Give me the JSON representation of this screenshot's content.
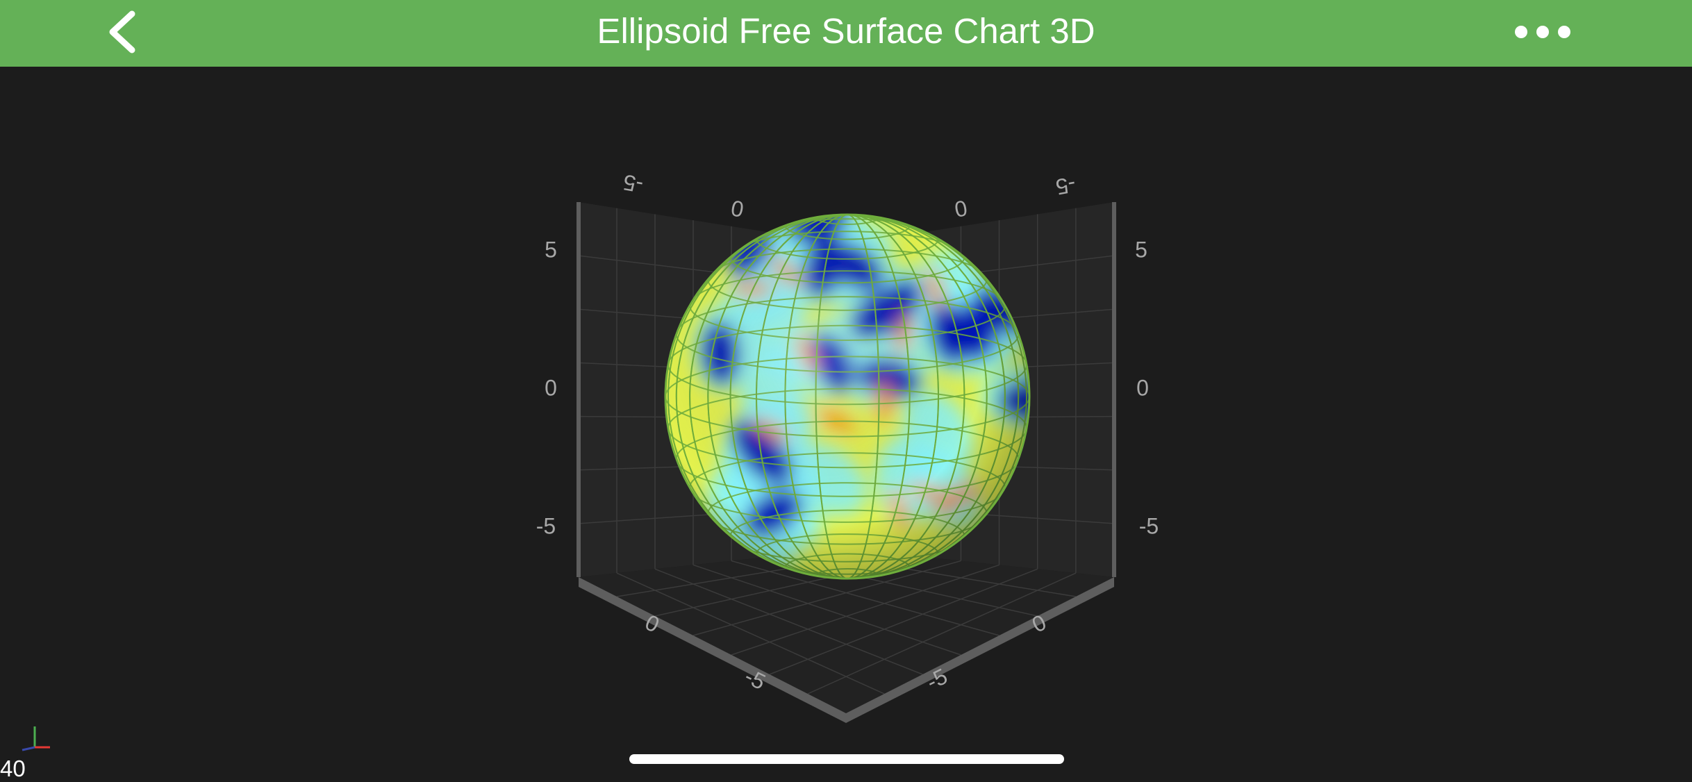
{
  "nav": {
    "title": "Ellipsoid Free Surface Chart 3D"
  },
  "overlay": {
    "fps": "40"
  },
  "colors": {
    "nav_bg": "#64b157",
    "background": "#1c1c1c",
    "mesh": "#6fae3c",
    "palette": [
      "#0016b8",
      "#2aa6ff",
      "#86f4ff",
      "#e7f84a",
      "#ffe100",
      "#ff8200",
      "#c01800"
    ]
  },
  "chart_data": {
    "type": "surface3d",
    "surface": "ellipsoid",
    "radii": {
      "x": 5,
      "y": 5,
      "z": 5
    },
    "xlim": [
      -7,
      7
    ],
    "ylim": [
      -7,
      7
    ],
    "zlim": [
      -7,
      7
    ],
    "grid": true,
    "wireframe": true,
    "tick_labels": {
      "back_left": [
        "-5",
        "0"
      ],
      "back_right": [
        "0",
        "-5"
      ],
      "vertical_left": [
        "5",
        "0",
        "-5"
      ],
      "vertical_right": [
        "5",
        "0",
        "-5"
      ],
      "floor_left": [
        "0",
        "-5"
      ],
      "floor_right": [
        "0",
        "-5"
      ]
    }
  }
}
